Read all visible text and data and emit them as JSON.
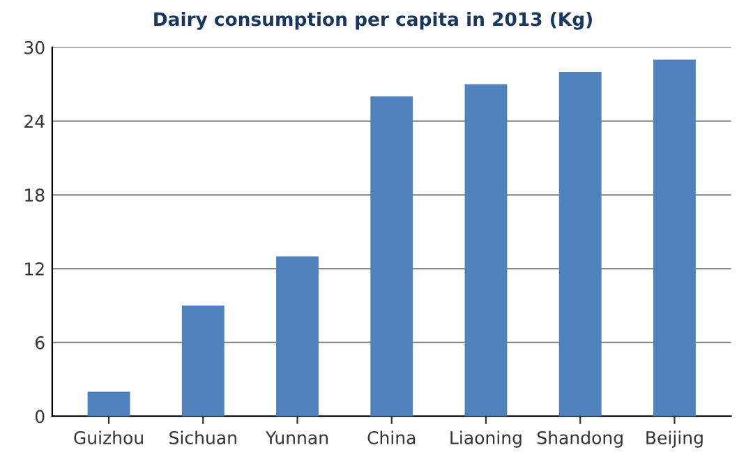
{
  "chart_data": {
    "type": "bar",
    "title": "Dairy consumption per capita in 2013 (Kg)",
    "categories": [
      "Guizhou",
      "Sichuan",
      "Yunnan",
      "China",
      "Liaoning",
      "Shandong",
      "Beijing"
    ],
    "values": [
      2,
      9,
      13,
      26,
      27,
      28,
      29
    ],
    "color": "#4f81bd",
    "ylim": [
      0,
      30
    ],
    "yticks": [
      0,
      6,
      12,
      18,
      24,
      30
    ],
    "grid": "y"
  }
}
